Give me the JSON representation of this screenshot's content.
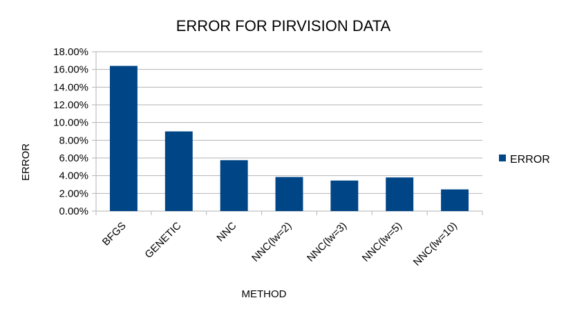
{
  "colors": {
    "bar": "#004586",
    "grid": "#b3b3b3",
    "text": "#000000"
  },
  "chart_data": {
    "type": "bar",
    "title": "ERROR FOR PIRVISION DATA",
    "xlabel": "METHOD",
    "ylabel": "ERROR",
    "categories": [
      "BFGS",
      "GENETIC",
      "NNC",
      "NNC(lw=2)",
      "NNC(lw=3)",
      "NNC(lw=5)",
      "NNC(lw=10)"
    ],
    "series": [
      {
        "name": "ERROR",
        "values": [
          16.4,
          9.0,
          5.75,
          3.85,
          3.45,
          3.8,
          2.45
        ]
      }
    ],
    "ylim": [
      0,
      18
    ],
    "yticks": [
      "0.00%",
      "2.00%",
      "4.00%",
      "6.00%",
      "8.00%",
      "10.00%",
      "12.00%",
      "14.00%",
      "16.00%",
      "18.00%"
    ],
    "grid": true,
    "legend_position": "right"
  }
}
